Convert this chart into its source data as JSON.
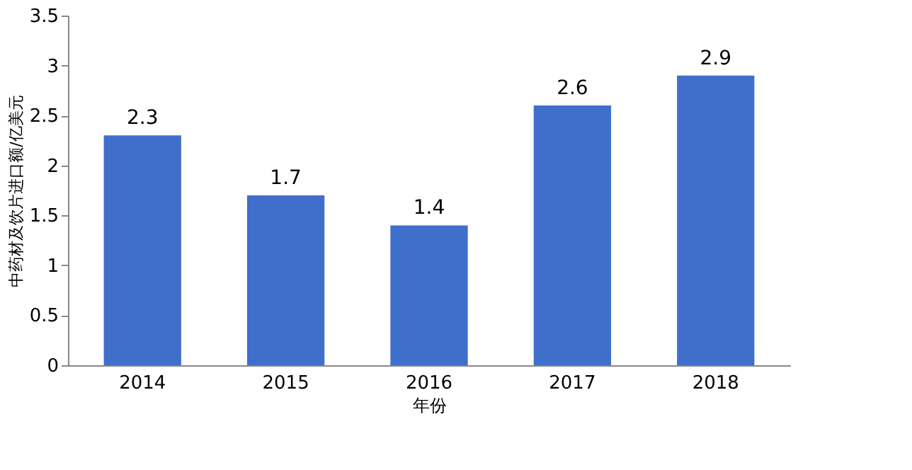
{
  "chart_data": {
    "type": "bar",
    "xlabel": "年份",
    "ylabel": "中药材及饮片进口额/亿美元",
    "categories": [
      "2014",
      "2015",
      "2016",
      "2017",
      "2018"
    ],
    "values": [
      2.3,
      1.7,
      1.4,
      2.6,
      2.9
    ],
    "color": "#3f6fcb",
    "ylim": [
      0,
      3.5
    ],
    "yticks": [
      0,
      0.5,
      1,
      1.5,
      2,
      2.5,
      3,
      3.5
    ],
    "grid": false,
    "data_labels": true
  }
}
